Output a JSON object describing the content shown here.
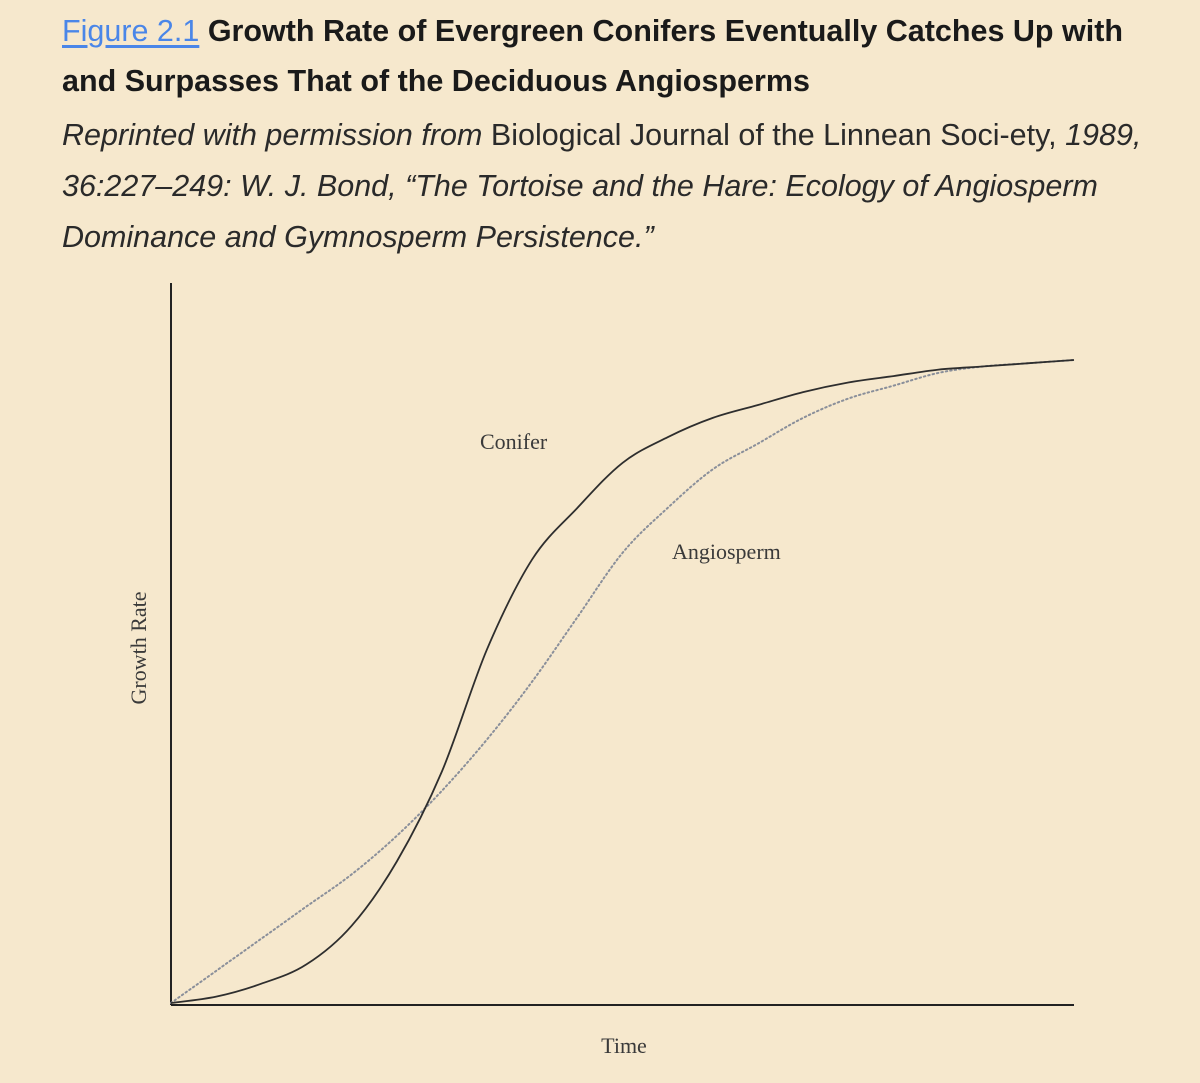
{
  "figure": {
    "label": "Figure 2.1",
    "title": "Growth Rate of Evergreen Conifers Eventually Catches Up with and Surpasses That of the Deciduous Angiosperms",
    "credit": {
      "prefix": "Reprinted with permission from",
      "journal": "Biological Journal of the Linnean Soci-ety,",
      "citation": "1989, 36:227–249: W. J. Bond, “The Tortoise and the Hare: Ecology of Angiosperm Dominance and Gymnosperm Persistence.”"
    }
  },
  "colors": {
    "background": "#f6e8cd",
    "link": "#4a86e8",
    "conifer_line": "#2e2e2e",
    "angiosperm_line": "#8a8f9a"
  },
  "chart_data": {
    "type": "line",
    "xlabel": "Time",
    "ylabel": "Growth Rate",
    "xlim": [
      0,
      1
    ],
    "ylim": [
      0,
      1
    ],
    "grid": false,
    "axis_ticks": false,
    "series": [
      {
        "name": "Conifer",
        "style": "solid",
        "x": [
          0,
          0.05,
          0.1,
          0.15,
          0.2,
          0.25,
          0.3,
          0.35,
          0.4,
          0.45,
          0.5,
          0.55,
          0.6,
          0.65,
          0.7,
          0.75,
          0.8,
          0.85,
          0.9,
          0.95,
          1
        ],
        "y": [
          0,
          0.01,
          0.03,
          0.06,
          0.12,
          0.22,
          0.36,
          0.55,
          0.69,
          0.77,
          0.84,
          0.88,
          0.91,
          0.93,
          0.95,
          0.965,
          0.975,
          0.985,
          0.99,
          0.995,
          1
        ]
      },
      {
        "name": "Angiosperm",
        "style": "dotted",
        "x": [
          0,
          0.05,
          0.1,
          0.15,
          0.2,
          0.25,
          0.3,
          0.35,
          0.4,
          0.45,
          0.5,
          0.55,
          0.6,
          0.65,
          0.7,
          0.75,
          0.8,
          0.85,
          0.9,
          0.95,
          1
        ],
        "y": [
          0,
          0.05,
          0.1,
          0.15,
          0.2,
          0.26,
          0.33,
          0.41,
          0.5,
          0.6,
          0.7,
          0.77,
          0.83,
          0.87,
          0.91,
          0.94,
          0.96,
          0.98,
          0.99,
          0.995,
          1
        ]
      }
    ]
  }
}
